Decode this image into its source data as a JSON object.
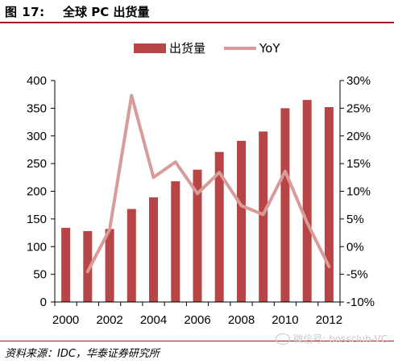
{
  "figure": {
    "label": "图 17:",
    "title": "全球 PC 出货量",
    "source": "资料来源：IDC，华泰证券研究所",
    "watermark": "微信号: bossclub-VC"
  },
  "chart_data": {
    "type": "bar+line",
    "categories": [
      "2000",
      "2001",
      "2002",
      "2003",
      "2004",
      "2005",
      "2006",
      "2007",
      "2008",
      "2009",
      "2010",
      "2011",
      "2012"
    ],
    "x_tick_labels": [
      "2000",
      "2002",
      "2004",
      "2006",
      "2008",
      "2010",
      "2012"
    ],
    "series": [
      {
        "name": "出货量",
        "type": "bar",
        "axis": "left",
        "color": "#b84545",
        "values": [
          134,
          128,
          132,
          168,
          189,
          218,
          239,
          271,
          291,
          308,
          350,
          365,
          352
        ]
      },
      {
        "name": "YoY",
        "type": "line",
        "axis": "right",
        "color": "#d99a9a",
        "values": [
          null,
          -4.5,
          3.1,
          27.3,
          12.5,
          15.3,
          9.6,
          13.4,
          7.4,
          5.8,
          13.6,
          4.3,
          -3.6
        ]
      }
    ],
    "y_left": {
      "min": 0,
      "max": 400,
      "ticks": [
        0,
        50,
        100,
        150,
        200,
        250,
        300,
        350,
        400
      ]
    },
    "y_right": {
      "min": -10,
      "max": 30,
      "ticks": [
        -10,
        -5,
        0,
        5,
        10,
        15,
        20,
        25,
        30
      ],
      "tick_labels": [
        "-10%",
        "-5%",
        "0%",
        "5%",
        "10%",
        "15%",
        "20%",
        "25%",
        "30%"
      ]
    },
    "legend_position": "top",
    "grid": false
  }
}
